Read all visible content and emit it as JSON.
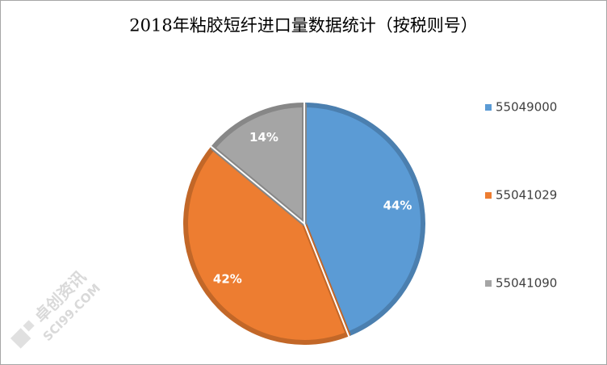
{
  "chart_data": {
    "type": "pie",
    "title": "2018年粘胶短纤进口量数据统计（按税则号）",
    "categories": [
      "55049000",
      "55041029",
      "55041090"
    ],
    "values": [
      44,
      42,
      14
    ],
    "value_labels": [
      "44%",
      "42%",
      "14%"
    ],
    "colors": [
      "#5b9bd5",
      "#ed7d31",
      "#a5a5a5"
    ],
    "legend": "right",
    "watermark": [
      "卓创资讯",
      "SCI99.COM"
    ]
  }
}
